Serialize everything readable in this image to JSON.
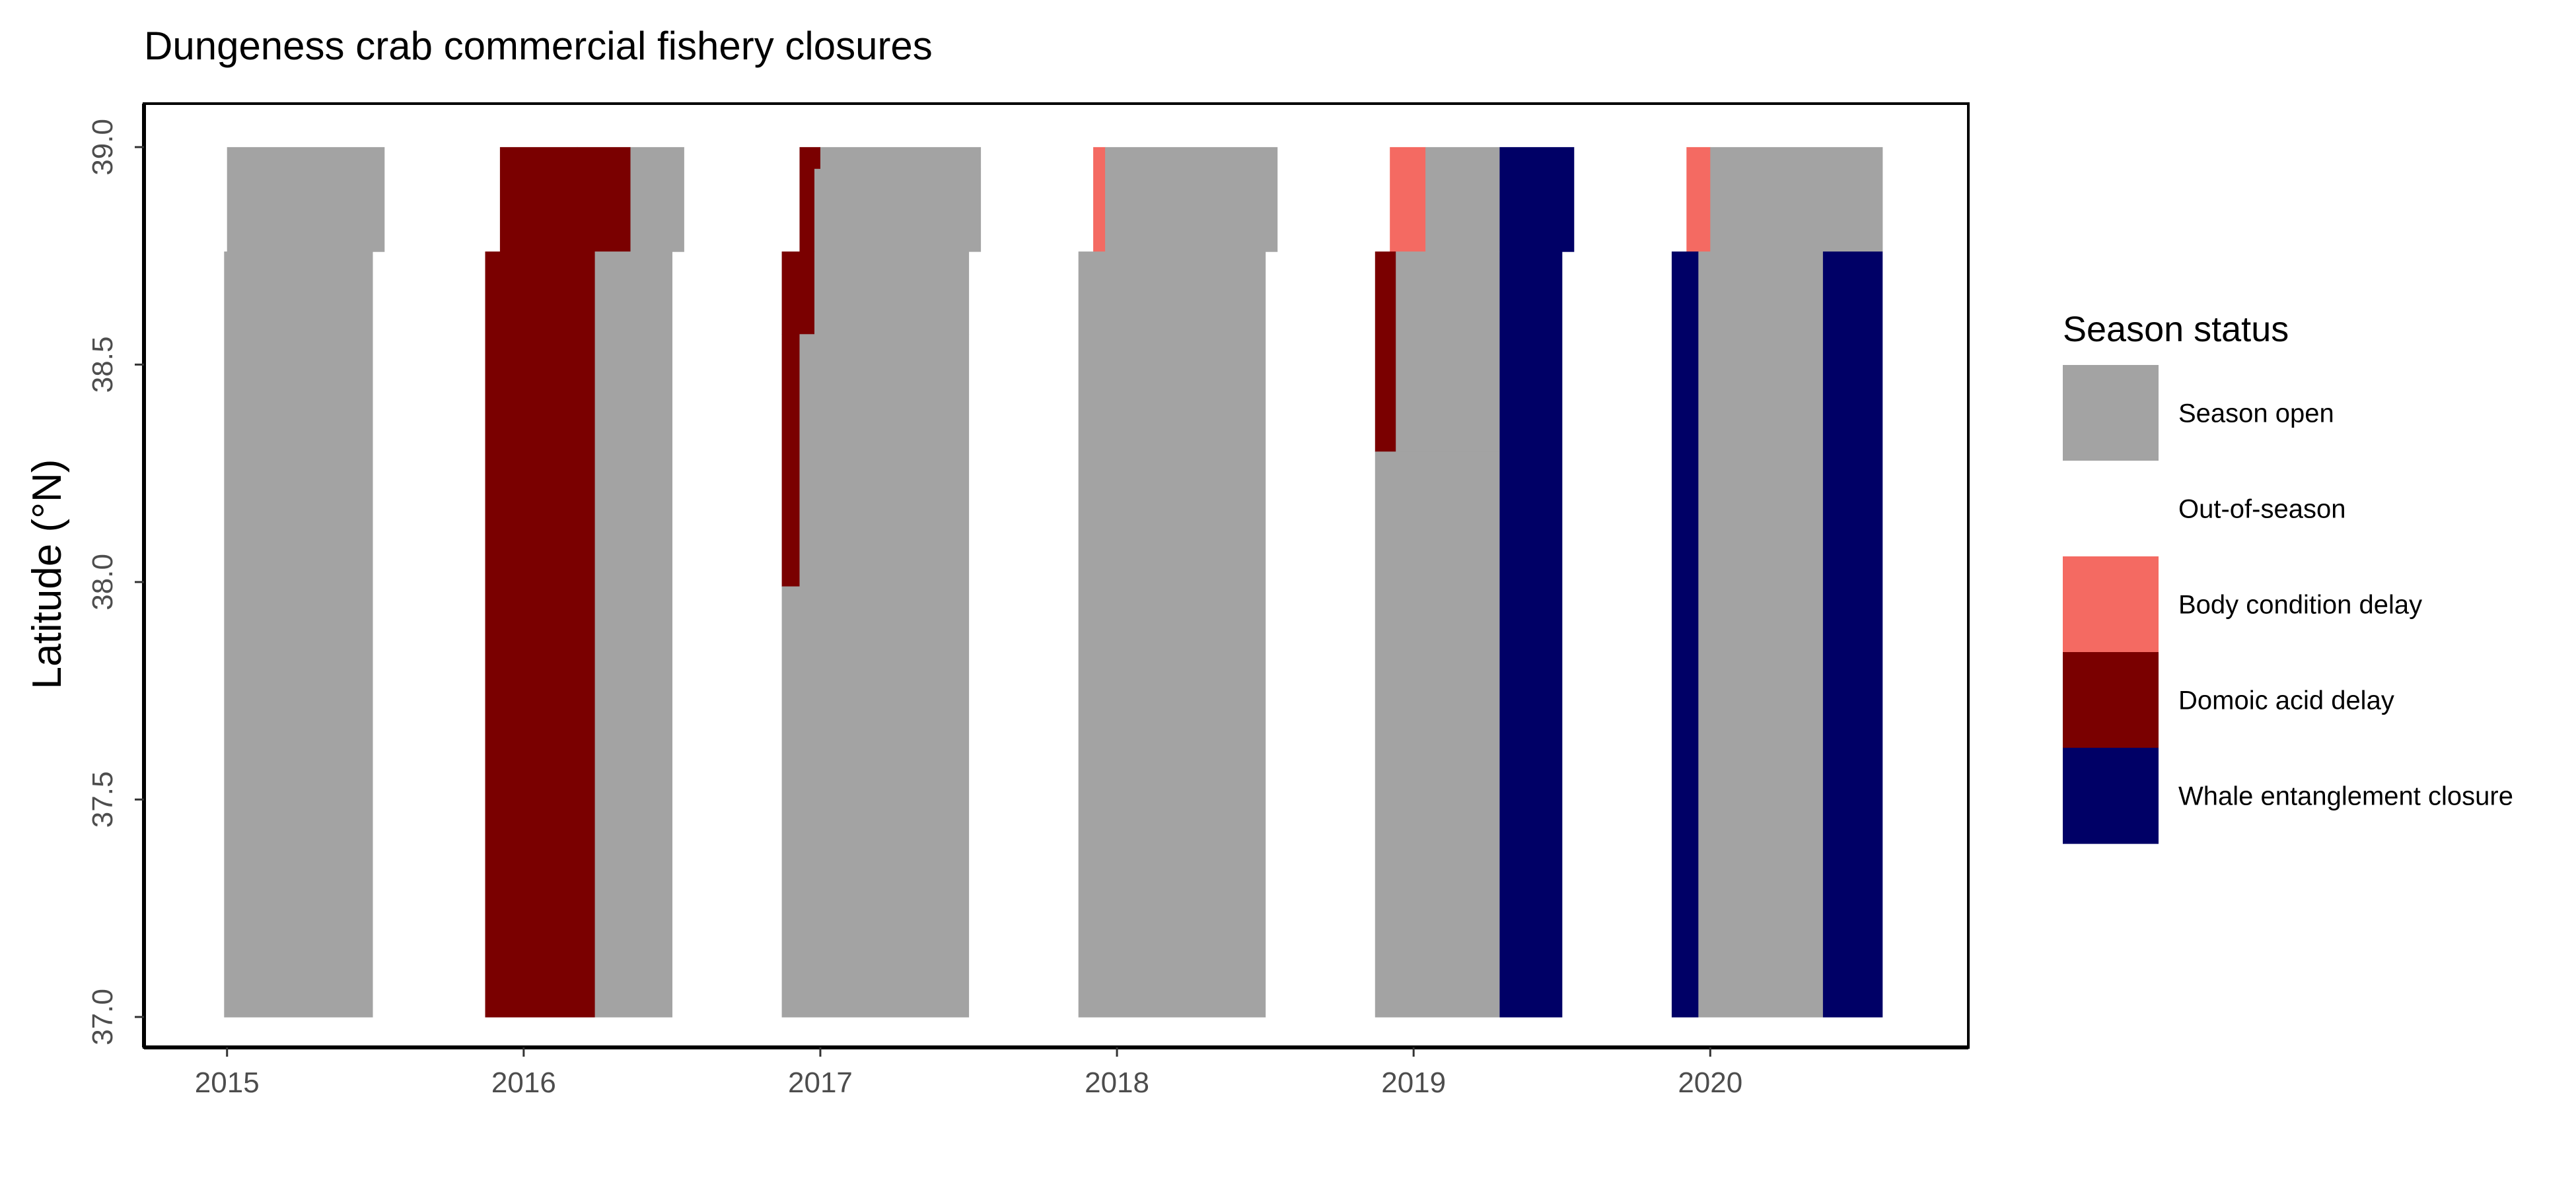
{
  "chart_data": {
    "type": "bar",
    "title": "Dungeness crab commercial fishery closures",
    "xlabel": "",
    "ylabel": "Latitude (°N)",
    "xlim": [
      2014.72,
      2020.87
    ],
    "ylim": [
      36.93,
      39.1
    ],
    "x_ticks": [
      2015,
      2016,
      2017,
      2018,
      2019,
      2020
    ],
    "x_tick_labels": [
      "2015",
      "2016",
      "2017",
      "2018",
      "2019",
      "2020"
    ],
    "y_ticks": [
      37.0,
      37.5,
      38.0,
      38.5,
      39.0
    ],
    "y_tick_labels": [
      "37.0",
      "37.5",
      "38.0",
      "38.5",
      "39.0"
    ],
    "grid": false,
    "legend": {
      "title": "Season status",
      "position": "right",
      "entries": [
        {
          "key": "open",
          "label": "Season open",
          "color": "#a3a3a3"
        },
        {
          "key": "out",
          "label": "Out-of-season",
          "color": "#ffffff"
        },
        {
          "key": "body",
          "label": "Body condition delay",
          "color": "#f46a62"
        },
        {
          "key": "domoic",
          "label": "Domoic acid delay",
          "color": "#7a0000"
        },
        {
          "key": "whale",
          "label": "Whale entanglement closure",
          "color": "#000066"
        }
      ]
    },
    "segments": [
      {
        "status": "open",
        "x0": 2015.0,
        "x1": 2015.53,
        "y0": 38.76,
        "y1": 39.0
      },
      {
        "status": "open",
        "x0": 2014.99,
        "x1": 2015.49,
        "y0": 37.0,
        "y1": 38.76
      },
      {
        "status": "domoic",
        "x0": 2016.18,
        "x1": 2016.36,
        "y0": 38.76,
        "y1": 39.0
      },
      {
        "status": "open",
        "x0": 2016.36,
        "x1": 2016.54,
        "y0": 38.76,
        "y1": 39.0
      },
      {
        "status": "domoic",
        "x0": 2015.87,
        "x1": 2016.24,
        "y0": 37.0,
        "y1": 38.76
      },
      {
        "status": "open",
        "x0": 2016.24,
        "x1": 2016.5,
        "y0": 37.0,
        "y1": 38.76
      },
      {
        "status": "domoic",
        "x0": 2015.92,
        "x1": 2016.18,
        "y0": 38.76,
        "y1": 39.0
      },
      {
        "status": "domoic",
        "x0": 2016.93,
        "x1": 2017.0,
        "y0": 38.95,
        "y1": 39.0
      },
      {
        "status": "domoic",
        "x0": 2016.93,
        "x1": 2016.98,
        "y0": 38.76,
        "y1": 38.95
      },
      {
        "status": "open",
        "x0": 2016.98,
        "x1": 2017.54,
        "y0": 38.76,
        "y1": 38.95
      },
      {
        "status": "open",
        "x0": 2017.0,
        "x1": 2017.54,
        "y0": 38.95,
        "y1": 39.0
      },
      {
        "status": "domoic",
        "x0": 2016.87,
        "x1": 2016.98,
        "y0": 38.57,
        "y1": 38.76
      },
      {
        "status": "domoic",
        "x0": 2016.87,
        "x1": 2016.93,
        "y0": 37.99,
        "y1": 38.57
      },
      {
        "status": "open",
        "x0": 2016.93,
        "x1": 2017.5,
        "y0": 37.0,
        "y1": 38.57
      },
      {
        "status": "open",
        "x0": 2016.98,
        "x1": 2017.5,
        "y0": 38.57,
        "y1": 38.76
      },
      {
        "status": "open",
        "x0": 2016.87,
        "x1": 2016.93,
        "y0": 37.0,
        "y1": 37.99
      },
      {
        "status": "body",
        "x0": 2017.92,
        "x1": 2017.96,
        "y0": 38.76,
        "y1": 39.0
      },
      {
        "status": "open",
        "x0": 2017.96,
        "x1": 2018.54,
        "y0": 38.76,
        "y1": 39.0
      },
      {
        "status": "open",
        "x0": 2017.87,
        "x1": 2018.5,
        "y0": 37.0,
        "y1": 38.76
      },
      {
        "status": "body",
        "x0": 2018.92,
        "x1": 2019.04,
        "y0": 38.76,
        "y1": 39.0
      },
      {
        "status": "open",
        "x0": 2019.04,
        "x1": 2019.29,
        "y0": 38.76,
        "y1": 39.0
      },
      {
        "status": "whale",
        "x0": 2019.29,
        "x1": 2019.54,
        "y0": 38.76,
        "y1": 39.0
      },
      {
        "status": "domoic",
        "x0": 2018.87,
        "x1": 2018.94,
        "y0": 38.3,
        "y1": 38.76
      },
      {
        "status": "open",
        "x0": 2018.94,
        "x1": 2019.29,
        "y0": 38.3,
        "y1": 38.76
      },
      {
        "status": "open",
        "x0": 2018.87,
        "x1": 2019.29,
        "y0": 37.0,
        "y1": 38.3
      },
      {
        "status": "whale",
        "x0": 2019.29,
        "x1": 2019.5,
        "y0": 37.0,
        "y1": 38.76
      },
      {
        "status": "body",
        "x0": 2019.92,
        "x1": 2020.0,
        "y0": 38.76,
        "y1": 39.0
      },
      {
        "status": "open",
        "x0": 2020.0,
        "x1": 2020.58,
        "y0": 38.76,
        "y1": 39.0
      },
      {
        "status": "whale",
        "x0": 2019.87,
        "x1": 2019.96,
        "y0": 37.0,
        "y1": 38.76
      },
      {
        "status": "open",
        "x0": 2019.96,
        "x1": 2020.38,
        "y0": 37.0,
        "y1": 38.76
      },
      {
        "status": "whale",
        "x0": 2020.38,
        "x1": 2020.58,
        "y0": 37.0,
        "y1": 38.76
      }
    ]
  }
}
